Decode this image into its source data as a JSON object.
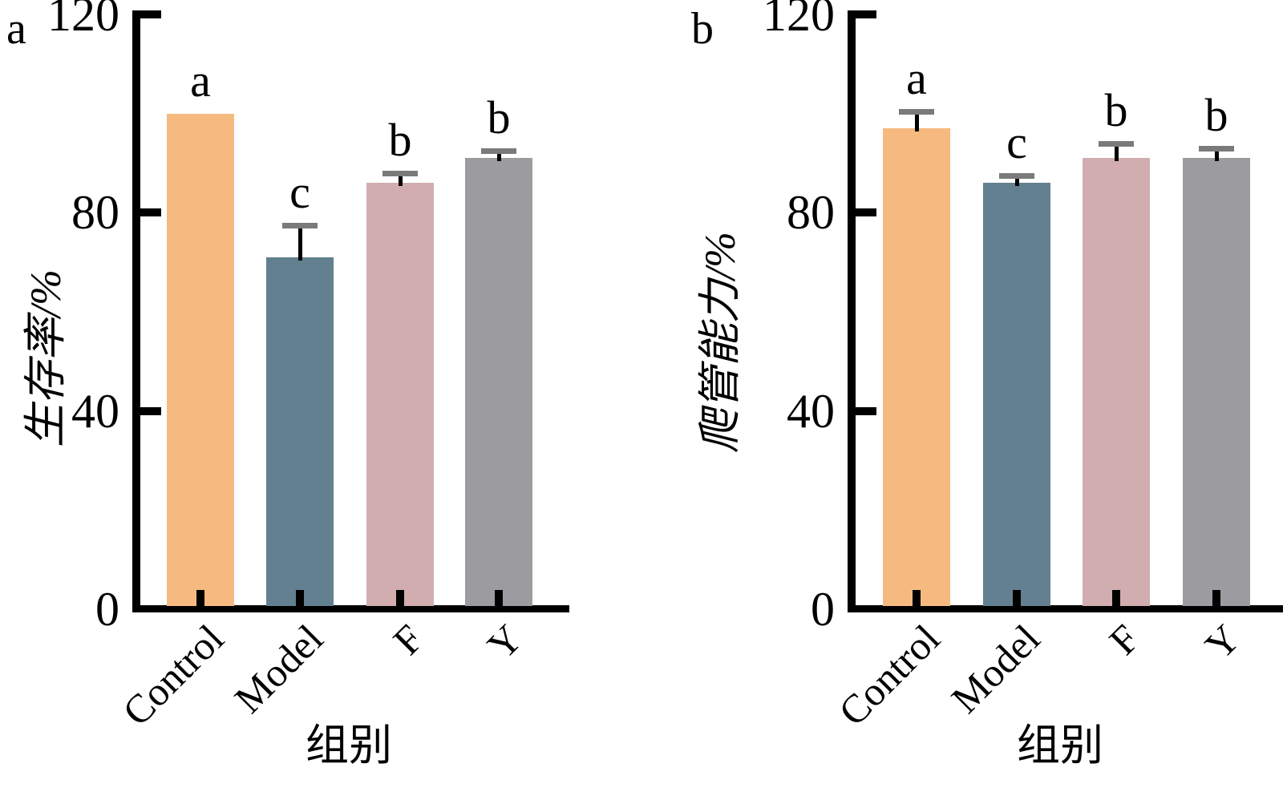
{
  "figure": {
    "background": "#ffffff",
    "axis_color": "#000000",
    "error_cap_color": "#7a7a7a",
    "error_line_color": "#000000"
  },
  "chart_data": [
    {
      "panel_label": "a",
      "type": "bar",
      "title": "",
      "ylabel": "生存率/%",
      "xlabel": "组别",
      "categories": [
        "Control",
        "Model",
        "F",
        "Y"
      ],
      "values": [
        100,
        71,
        86,
        91
      ],
      "errors": [
        0,
        6.5,
        2,
        1.5
      ],
      "sig_letters": [
        "a",
        "c",
        "b",
        "b"
      ],
      "bar_colors": [
        "#F6BA81",
        "#62808F",
        "#D1ADAF",
        "#9C9CA0"
      ],
      "ylim": [
        0,
        120
      ],
      "yticks": [
        0,
        40,
        80,
        120
      ],
      "grid": false,
      "legend": "none"
    },
    {
      "panel_label": "b",
      "type": "bar",
      "title": "",
      "ylabel": "爬管能力/%",
      "xlabel": "组别",
      "categories": [
        "Control",
        "Model",
        "F",
        "Y"
      ],
      "values": [
        97,
        86,
        91,
        91
      ],
      "errors": [
        3.5,
        1.5,
        3,
        2
      ],
      "sig_letters": [
        "a",
        "c",
        "b",
        "b"
      ],
      "bar_colors": [
        "#F6BA81",
        "#62808F",
        "#D1ADAF",
        "#9C9CA0"
      ],
      "ylim": [
        0,
        120
      ],
      "yticks": [
        0,
        40,
        80,
        120
      ],
      "grid": false,
      "legend": "none"
    }
  ]
}
